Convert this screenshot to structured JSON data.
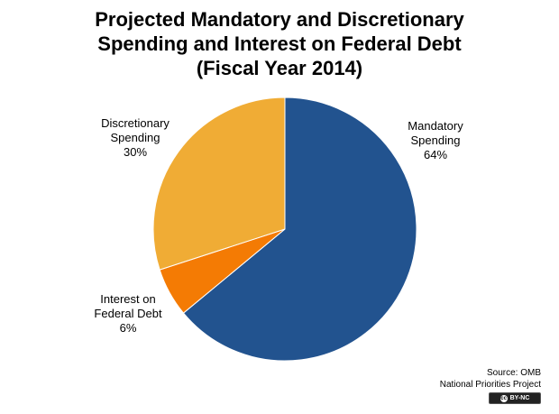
{
  "chart_data": {
    "type": "pie",
    "title": [
      "Projected Mandatory and Discretionary",
      "Spending and Interest on Federal Debt",
      "(Fiscal Year 2014)"
    ],
    "slices": [
      {
        "label": [
          "Mandatory",
          "Spending"
        ],
        "value_label": "64%",
        "value": 64,
        "color": "#22538f"
      },
      {
        "label": [
          "Interest on",
          "Federal Debt"
        ],
        "value_label": "6%",
        "value": 6,
        "color": "#f47b04"
      },
      {
        "label": [
          "Discretionary",
          "Spending"
        ],
        "value_label": "30%",
        "value": 30,
        "color": "#f0ac35"
      }
    ]
  },
  "source": {
    "line1": "Source: OMB",
    "line2": "National Priorities Project"
  },
  "license": {
    "icon": "cc-icon",
    "text": "BY-NC"
  }
}
